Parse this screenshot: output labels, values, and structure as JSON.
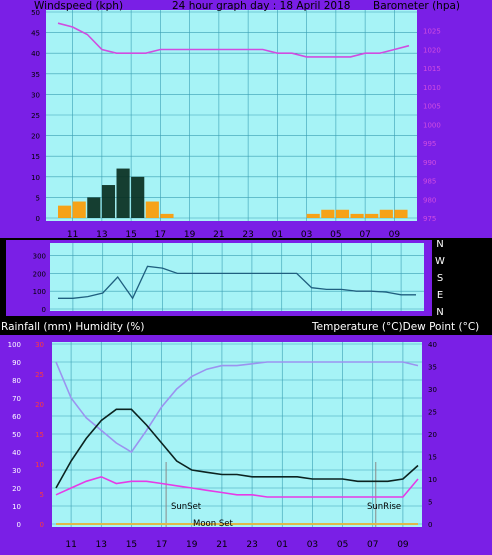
{
  "header": {
    "left_label": "Windspeed (kph)",
    "center_label": "24 hour graph day : 18 April 2018",
    "right_label": "Barometer (hpa)"
  },
  "rain_header": {
    "left_label": "Rainfall (mm)  Humidity (%)",
    "right_label": "Temperature (°C)Dew Point (°C)"
  },
  "annotations": {
    "sunset": "SunSet",
    "moonset": "Moon Set",
    "sunrise": "SunRise"
  },
  "colors": {
    "frame": "#7a1fe6",
    "plot_bg": "#a6f3f6",
    "grid": "#3a9fb3",
    "wind_black": "#062a1c",
    "wind_orange": "#ff9900",
    "wind_gust": "#1b7a5e",
    "barometer": "#d04de0",
    "direction": "#1f5f7f",
    "temperature": "#0b2320",
    "humidity": "#9b93f0",
    "dewpoint": "#e63be6",
    "rain_axis": "#ff3b3b",
    "axis_text": "#000000",
    "right_axis_text": "#d04de0"
  },
  "chart_data": [
    {
      "type": "line",
      "title": "24 hour graph day : 18 April 2018",
      "x_tick_labels": [
        "11",
        "13",
        "15",
        "17",
        "19",
        "21",
        "23",
        "01",
        "03",
        "05",
        "07",
        "09"
      ],
      "y_left": {
        "label": "Windspeed (kph)",
        "ticks": [
          0,
          5,
          10,
          15,
          20,
          25,
          30,
          35,
          40,
          45,
          50
        ],
        "range": [
          0,
          50
        ]
      },
      "y_right": {
        "label": "Barometer (hpa)",
        "ticks": [
          975,
          980,
          985,
          990,
          995,
          1000,
          1005,
          1010,
          1015,
          1020,
          1025
        ],
        "range": [
          975,
          1030
        ]
      },
      "hours": [
        0,
        1,
        2,
        3,
        4,
        5,
        6,
        7,
        8,
        9,
        10,
        11,
        12,
        13,
        14,
        15,
        16,
        17,
        18,
        19,
        20,
        21,
        22,
        23,
        24
      ],
      "series": [
        {
          "name": "Windspeed (kph)",
          "axis": "left",
          "values": [
            3,
            4,
            5,
            8,
            12,
            10,
            4,
            1,
            0,
            0,
            0,
            0,
            0,
            0,
            0,
            0,
            0,
            1,
            2,
            2,
            1,
            1,
            2,
            2,
            2
          ]
        },
        {
          "name": "Barometer (hpa)",
          "axis": "right",
          "values": [
            1027,
            1026,
            1024,
            1020,
            1019,
            1019,
            1019,
            1020,
            1020,
            1020,
            1020,
            1020,
            1020,
            1020,
            1020,
            1019,
            1019,
            1018,
            1018,
            1018,
            1018,
            1019,
            1019,
            1020,
            1021
          ]
        }
      ]
    },
    {
      "type": "line",
      "title": "",
      "x_tick_labels": [
        "11",
        "13",
        "15",
        "17",
        "19",
        "21",
        "23",
        "01",
        "03",
        "05",
        "07",
        "09"
      ],
      "y_left": {
        "ticks": [
          0,
          100,
          200,
          300
        ],
        "range": [
          0,
          360
        ]
      },
      "y_right": {
        "ticks": [
          "N",
          "W",
          "S",
          "E",
          "N"
        ]
      },
      "hours": [
        0,
        1,
        2,
        3,
        4,
        5,
        6,
        7,
        8,
        9,
        10,
        11,
        12,
        13,
        14,
        15,
        16,
        17,
        18,
        19,
        20,
        21,
        22,
        23,
        24
      ],
      "series": [
        {
          "name": "Wind direction",
          "values": [
            60,
            60,
            70,
            90,
            180,
            60,
            240,
            230,
            200,
            200,
            200,
            200,
            200,
            200,
            200,
            200,
            200,
            120,
            110,
            110,
            100,
            100,
            95,
            80,
            80
          ]
        }
      ]
    },
    {
      "type": "line",
      "title": "",
      "x_tick_labels": [
        "11",
        "13",
        "15",
        "17",
        "19",
        "21",
        "23",
        "01",
        "03",
        "05",
        "07",
        "09"
      ],
      "y_left": {
        "label": "Humidity (%)",
        "ticks": [
          0,
          10,
          20,
          30,
          40,
          50,
          60,
          70,
          80,
          90,
          100
        ],
        "range": [
          0,
          100
        ]
      },
      "y_left_rain": {
        "label": "Rainfall (mm)",
        "ticks": [
          0,
          5,
          10,
          15,
          20,
          25,
          30
        ],
        "range": [
          0,
          30
        ]
      },
      "y_right": {
        "label": "Temperature (°C)",
        "ticks": [
          0,
          5,
          10,
          15,
          20,
          25,
          30,
          35,
          40
        ],
        "range": [
          0,
          40
        ]
      },
      "hours": [
        0,
        1,
        2,
        3,
        4,
        5,
        6,
        7,
        8,
        9,
        10,
        11,
        12,
        13,
        14,
        15,
        16,
        17,
        18,
        19,
        20,
        21,
        22,
        23,
        24
      ],
      "series": [
        {
          "name": "Temperature (°C)",
          "axis": "right",
          "values": [
            8,
            14,
            19,
            23,
            25.5,
            25.5,
            22,
            18,
            14,
            12,
            11.5,
            11,
            11,
            10.5,
            10.5,
            10.5,
            10.5,
            10,
            10,
            10,
            9.5,
            9.5,
            9.5,
            10,
            13
          ]
        },
        {
          "name": "Humidity (%)",
          "axis": "left",
          "values": [
            90,
            70,
            59,
            52,
            45,
            40,
            52,
            65,
            75,
            82,
            86,
            88,
            88,
            89,
            90,
            90,
            90,
            90,
            90,
            90,
            90,
            90,
            90,
            90,
            88
          ]
        },
        {
          "name": "Dew Point (°C)",
          "axis": "right",
          "values": [
            6.5,
            8,
            9.5,
            10.5,
            9,
            9.5,
            9.5,
            9,
            8.5,
            8,
            7.5,
            7,
            6.5,
            6.5,
            6,
            6,
            6,
            6,
            6,
            6,
            6,
            6,
            6,
            6,
            10
          ]
        },
        {
          "name": "Rainfall (mm)",
          "axis": "left_rain",
          "values": [
            0,
            0,
            0,
            0,
            0,
            0,
            0,
            0,
            0,
            0,
            0,
            0,
            0,
            0,
            0,
            0,
            0,
            0,
            0,
            0,
            0,
            0,
            0,
            0,
            0
          ]
        }
      ]
    }
  ]
}
